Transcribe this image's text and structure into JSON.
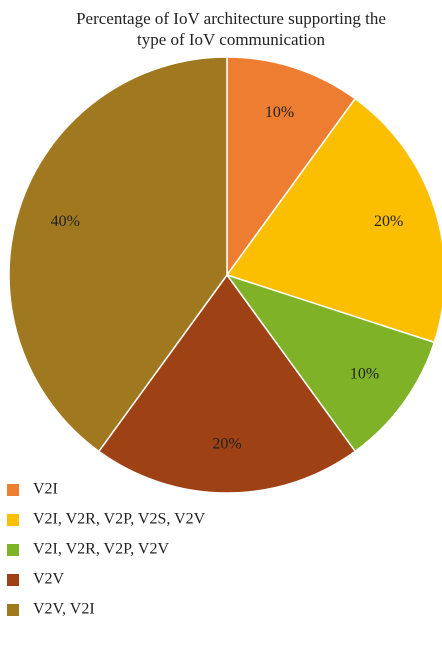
{
  "chart_data": {
    "type": "pie",
    "title": "Percentage of IoV architecture supporting the type of IoV communication",
    "categories": [
      "V2I",
      "V2I, V2R, V2P, V2S, V2V",
      "V2I, V2R, V2P, V2V",
      "V2V",
      "V2V, V2I"
    ],
    "values": [
      10,
      20,
      10,
      20,
      40
    ],
    "value_labels": [
      "10%",
      "20%",
      "10%",
      "20%",
      "40%"
    ],
    "colors": [
      "#ed7d31",
      "#fbbf00",
      "#7fb227",
      "#9e4215",
      "#a0781f"
    ],
    "legend": "bottom"
  }
}
